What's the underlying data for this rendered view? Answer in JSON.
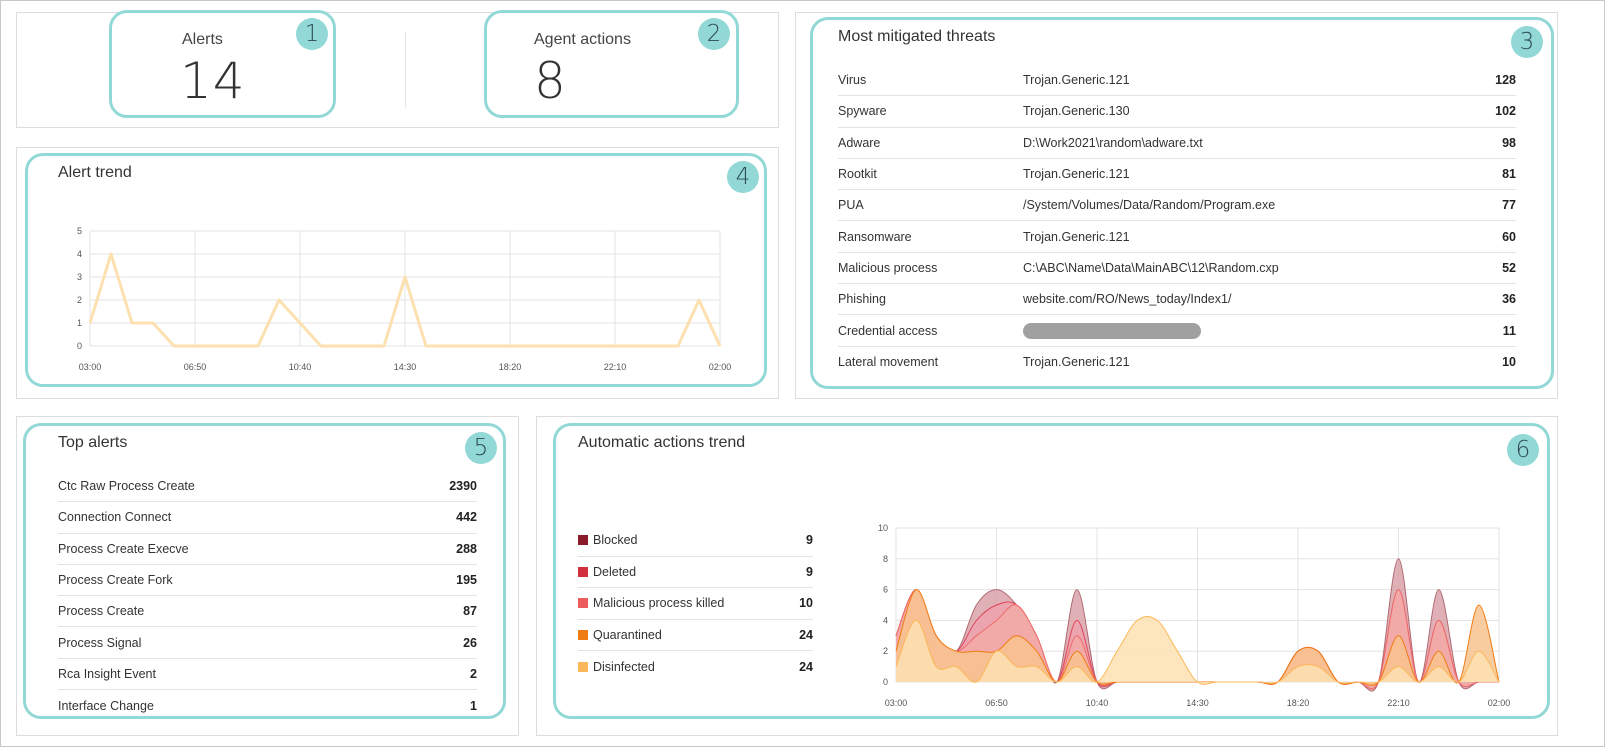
{
  "kpis": {
    "alerts": {
      "label": "Alerts",
      "value": "14",
      "badge": "1"
    },
    "agent_actions": {
      "label": "Agent actions",
      "value": "8",
      "badge": "2"
    }
  },
  "threats": {
    "title": "Most mitigated threats",
    "badge": "3",
    "rows": [
      {
        "type": "Virus",
        "name": "Trojan.Generic.121",
        "count": "128"
      },
      {
        "type": "Spyware",
        "name": "Trojan.Generic.130",
        "count": "102"
      },
      {
        "type": "Adware",
        "name": "D:\\Work2021\\random\\adware.txt",
        "count": "98"
      },
      {
        "type": "Rootkit",
        "name": "Trojan.Generic.121",
        "count": "81"
      },
      {
        "type": "PUA",
        "name": "/System/Volumes/Data/Random/Program.exe",
        "count": "77"
      },
      {
        "type": "Ransomware",
        "name": "Trojan.Generic.121",
        "count": "60"
      },
      {
        "type": "Malicious process",
        "name": "C:\\ABC\\Name\\Data\\MainABC\\12\\Random.cxp",
        "count": "52"
      },
      {
        "type": "Phishing",
        "name": "website.com/RO/News_today/Index1/",
        "count": "36"
      },
      {
        "type": "Credential access",
        "name": "",
        "redacted": true,
        "count": "11"
      },
      {
        "type": "Lateral movement",
        "name": "Trojan.Generic.121",
        "count": "10"
      }
    ]
  },
  "alert_trend": {
    "title": "Alert trend",
    "badge": "4"
  },
  "top_alerts": {
    "title": "Top alerts",
    "badge": "5",
    "rows": [
      {
        "name": "Ctc Raw Process Create",
        "count": "2390"
      },
      {
        "name": "Connection Connect",
        "count": "442"
      },
      {
        "name": "Process Create Execve",
        "count": "288"
      },
      {
        "name": "Process Create Fork",
        "count": "195"
      },
      {
        "name": "Process Create",
        "count": "87"
      },
      {
        "name": "Process Signal",
        "count": "26"
      },
      {
        "name": "Rca Insight Event",
        "count": "2"
      },
      {
        "name": "Interface Change",
        "count": "1"
      }
    ]
  },
  "actions_trend": {
    "title": "Automatic actions trend",
    "badge": "6",
    "legend": [
      {
        "name": "Blocked",
        "count": "9",
        "color": "#8b1a2b"
      },
      {
        "name": "Deleted",
        "count": "9",
        "color": "#d12f3c"
      },
      {
        "name": "Malicious process killed",
        "count": "10",
        "color": "#ee5d5d"
      },
      {
        "name": "Quarantined",
        "count": "24",
        "color": "#f07b12"
      },
      {
        "name": "Disinfected",
        "count": "24",
        "color": "#fbb85a"
      }
    ]
  },
  "chart_data": [
    {
      "type": "line",
      "title": "Alert trend",
      "x": [
        "03:00",
        "",
        "",
        "",
        "",
        "06:50",
        "",
        "",
        "",
        "",
        "10:40",
        "",
        "",
        "",
        "",
        "14:30",
        "",
        "",
        "",
        "",
        "18:20",
        "",
        "",
        "",
        "",
        "22:10",
        "",
        "",
        "",
        "",
        "02:00"
      ],
      "xticks": [
        "03:00",
        "06:50",
        "10:40",
        "14:30",
        "18:20",
        "22:10",
        "02:00"
      ],
      "yticks": [
        0,
        1,
        2,
        3,
        4,
        5
      ],
      "ylim": [
        0,
        5
      ],
      "values": [
        1,
        4,
        1,
        1,
        0,
        0,
        0,
        0,
        0,
        2,
        1,
        0,
        0,
        0,
        0,
        3,
        0,
        0,
        0,
        0,
        0,
        0,
        0,
        0,
        0,
        0,
        0,
        0,
        0,
        2,
        0
      ],
      "color": "#fde0b0"
    },
    {
      "type": "area",
      "title": "Automatic actions trend",
      "x": [
        "03:00",
        "",
        "",
        "",
        "",
        "06:50",
        "",
        "",
        "",
        "",
        "10:40",
        "",
        "",
        "",
        "",
        "14:30",
        "",
        "",
        "",
        "",
        "18:20",
        "",
        "",
        "",
        "",
        "22:10",
        "",
        "",
        "",
        "",
        "02:00"
      ],
      "xticks": [
        "03:00",
        "06:50",
        "10:40",
        "14:30",
        "18:20",
        "22:10",
        "02:00"
      ],
      "yticks": [
        0,
        2,
        4,
        6,
        8,
        10
      ],
      "ylim": [
        0,
        10
      ],
      "stacked": false,
      "series": [
        {
          "name": "Blocked",
          "color": "#b06a72",
          "fill": "#d9a3a9",
          "values": [
            3,
            6,
            3,
            2,
            5,
            6,
            5,
            3,
            0,
            6,
            0,
            0,
            0,
            0,
            0,
            0,
            0,
            0,
            0,
            0,
            2,
            2,
            0,
            0,
            0,
            8,
            0,
            6,
            0,
            0,
            0
          ]
        },
        {
          "name": "Deleted",
          "color": "#e0445a",
          "fill": "#eea3ad",
          "values": [
            3,
            6,
            3,
            2,
            4,
            5,
            5,
            3,
            0,
            4,
            0,
            0,
            0,
            0,
            0,
            0,
            0,
            0,
            0,
            0,
            2,
            2,
            0,
            0,
            0,
            6,
            0,
            4,
            0,
            0,
            0
          ]
        },
        {
          "name": "Malicious process killed",
          "color": "#ef6a6a",
          "fill": "#f2aaa6",
          "values": [
            3,
            6,
            3,
            2,
            3,
            4,
            5,
            3,
            0,
            3,
            0,
            0,
            0,
            0,
            0,
            0,
            0,
            0,
            0,
            0,
            2,
            2,
            0,
            0,
            0,
            6,
            0,
            4,
            0,
            0,
            0
          ]
        },
        {
          "name": "Quarantined",
          "color": "#f07b12",
          "fill": "#f8c38e",
          "values": [
            2,
            6,
            3,
            2,
            2,
            2,
            3,
            2,
            0,
            2,
            0,
            0,
            0,
            0,
            0,
            0,
            0,
            0,
            0,
            0,
            2,
            2,
            0,
            0,
            0,
            3,
            0,
            2,
            0,
            5,
            0
          ]
        },
        {
          "name": "Disinfected",
          "color": "#fbb85a",
          "fill": "#fde0b3",
          "values": [
            1,
            4,
            1,
            1,
            0,
            2,
            1,
            1,
            0,
            1,
            0,
            2,
            4,
            4,
            2,
            0,
            0,
            0,
            0,
            0,
            1,
            1,
            0,
            0,
            0,
            1,
            0,
            1,
            0,
            2,
            0
          ]
        }
      ]
    }
  ]
}
